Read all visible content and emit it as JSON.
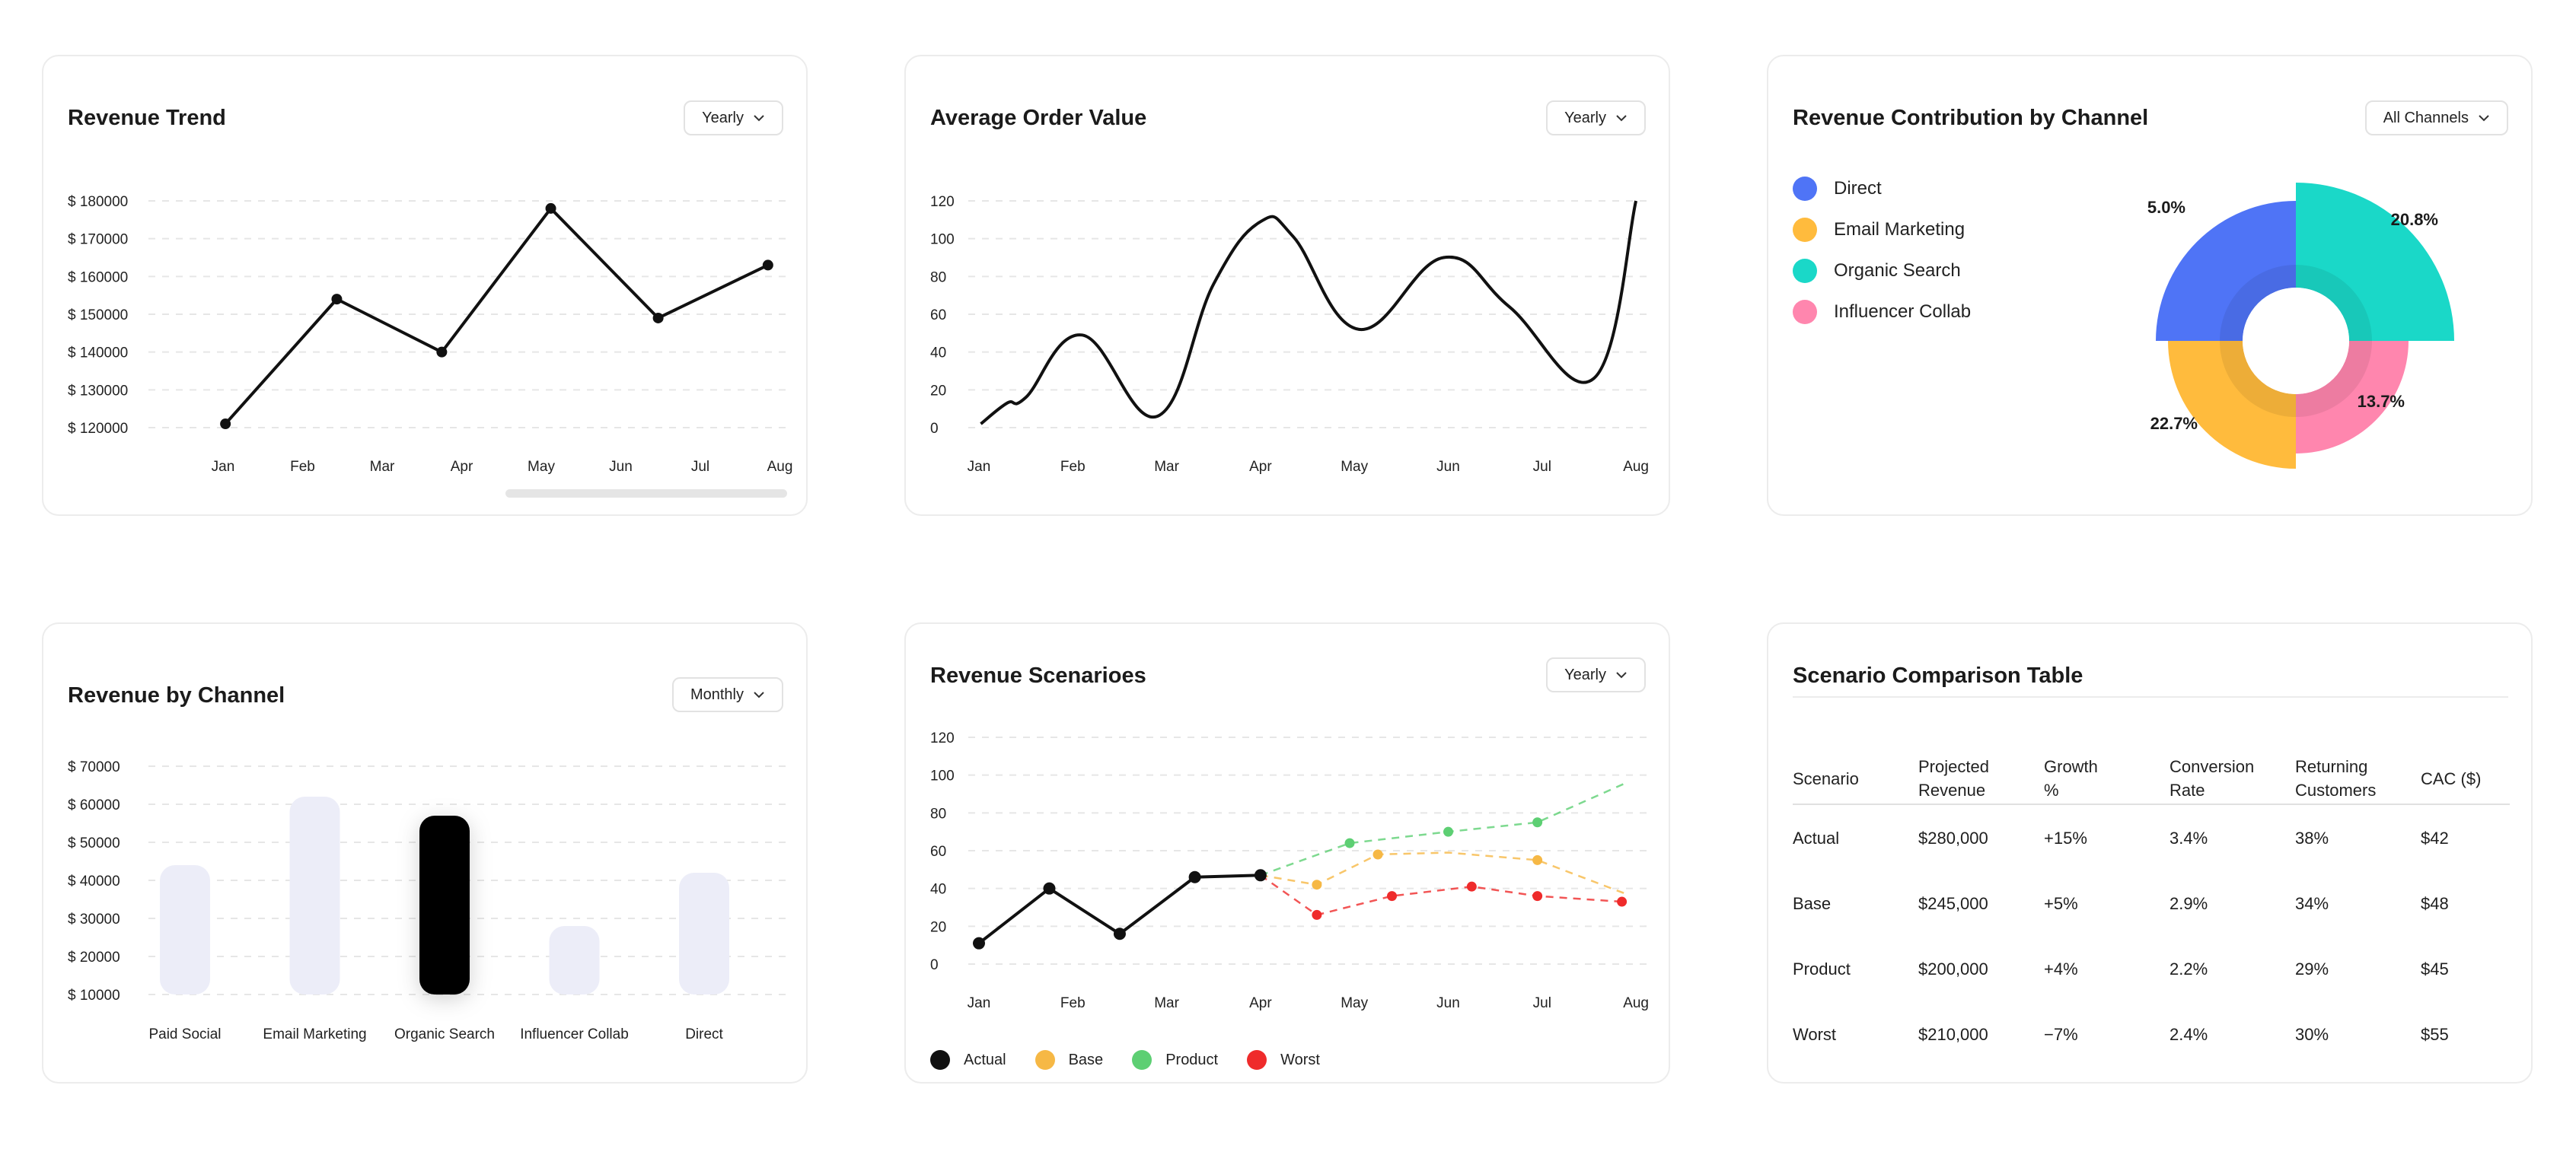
{
  "colors": {
    "direct": "#4f74f6",
    "email": "#ffbb3d",
    "organic": "#1ad8c8",
    "influencer": "#ff86ae",
    "actual": "#111111",
    "base": "#f6b845",
    "product": "#5dcf73",
    "worst": "#ef2b2b",
    "bar_light": "#ecedf8",
    "bar_active": "#000000"
  },
  "cards": {
    "revenue_trend": {
      "title": "Revenue Trend",
      "dropdown": "Yearly",
      "chart_data": {
        "type": "line",
        "title": "Revenue Trend",
        "categories": [
          "Jan",
          "Feb",
          "Mar",
          "Apr",
          "May",
          "Jun",
          "Jul",
          "Aug"
        ],
        "x": [
          "Jan",
          "Feb",
          "Apr",
          "May",
          "Jul",
          "Aug"
        ],
        "x_pos": [
          0.03,
          1.43,
          2.75,
          4.12,
          5.47,
          6.85
        ],
        "values": [
          121000,
          154000,
          140000,
          178000,
          149000,
          163000
        ],
        "ylim": [
          120000,
          180000
        ],
        "yticks": [
          180000,
          170000,
          160000,
          150000,
          140000,
          130000,
          120000
        ],
        "ytick_labels": [
          "$ 180000",
          "$ 170000",
          "$ 160000",
          "$ 150000",
          "$ 140000",
          "$ 130000",
          "$ 120000"
        ],
        "grid": true
      }
    },
    "avg_order_value": {
      "title": "Average Order Value",
      "dropdown": "Yearly",
      "chart_data": {
        "type": "line",
        "title": "Average Order Value",
        "categories": [
          "Jan",
          "Feb",
          "Mar",
          "Apr",
          "May",
          "Jun",
          "Jul",
          "Aug"
        ],
        "x": [
          0.02,
          0.3,
          0.5,
          1.1,
          1.9,
          2.5,
          3.0,
          3.35,
          4.05,
          4.95,
          5.65,
          6.55,
          7.0
        ],
        "values": [
          2,
          13,
          16,
          49,
          6,
          76,
          109,
          101,
          52,
          90,
          64,
          26,
          120
        ],
        "ylim": [
          0,
          120
        ],
        "yticks": [
          120,
          100,
          80,
          60,
          40,
          20,
          0
        ],
        "grid": true,
        "smooth": true
      }
    },
    "revenue_contribution": {
      "title": "Revenue Contribution by Channel",
      "dropdown": "All Channels",
      "legend": [
        "Direct",
        "Email Marketing",
        "Organic Search",
        "Influencer Collab"
      ],
      "chart_data": {
        "type": "pie",
        "title": "Revenue Contribution by Channel",
        "categories": [
          "Organic Search",
          "Influencer Collab",
          "Email Marketing",
          "Direct"
        ],
        "values": [
          20.8,
          13.7,
          22.7,
          5.0
        ],
        "labels": [
          "20.8%",
          "13.7%",
          "22.7%",
          "5.0%"
        ],
        "legend_position": "left"
      }
    },
    "revenue_by_channel": {
      "title": "Revenue by Channel",
      "dropdown": "Monthly",
      "chart_data": {
        "type": "bar",
        "title": "Revenue by Channel",
        "categories": [
          "Paid Social",
          "Email Marketing",
          "Organic Search",
          "Influencer Collab",
          "Direct"
        ],
        "values": [
          44000,
          62000,
          57000,
          28000,
          42000
        ],
        "highlight": "Organic Search",
        "ylim": [
          10000,
          70000
        ],
        "yticks": [
          70000,
          60000,
          50000,
          40000,
          30000,
          20000,
          10000
        ],
        "ytick_labels": [
          "$ 70000",
          "$ 60000",
          "$ 50000",
          "$ 40000",
          "$ 30000",
          "$ 20000",
          "$ 10000"
        ],
        "grid": true
      }
    },
    "revenue_scenarios": {
      "title": "Revenue Scenarioes",
      "dropdown": "Yearly",
      "legend": [
        "Actual",
        "Base",
        "Product",
        "Worst"
      ],
      "chart_data": {
        "type": "line",
        "title": "Revenue Scenarioes",
        "categories": [
          "Jan",
          "Feb",
          "Mar",
          "Apr",
          "May",
          "Jun",
          "Jul",
          "Aug"
        ],
        "ylim": [
          0,
          120
        ],
        "yticks": [
          120,
          100,
          80,
          60,
          40,
          20,
          0
        ],
        "grid": true,
        "series": [
          {
            "name": "Actual",
            "x": [
              0,
              0.75,
              1.5,
              2.3,
              3.0
            ],
            "values": [
              11,
              40,
              16,
              46,
              47
            ],
            "dashed": false
          },
          {
            "name": "Base",
            "x": [
              3.0,
              3.6,
              4.25,
              5.0,
              5.95,
              6.9
            ],
            "values": [
              47,
              42,
              58,
              59,
              55,
              37
            ],
            "markers": [
              false,
              true,
              true,
              false,
              true,
              false
            ],
            "dashed": true
          },
          {
            "name": "Product",
            "x": [
              3.0,
              3.95,
              5.0,
              5.95,
              6.9
            ],
            "values": [
              47,
              64,
              70,
              75,
              96
            ],
            "markers": [
              false,
              true,
              true,
              true,
              false
            ],
            "dashed": true
          },
          {
            "name": "Worst",
            "x": [
              3.0,
              3.6,
              4.4,
              5.25,
              5.95,
              6.85
            ],
            "values": [
              47,
              26,
              36,
              41,
              36,
              33
            ],
            "markers": [
              false,
              true,
              true,
              true,
              true,
              true
            ],
            "dashed": true
          }
        ]
      }
    },
    "scenario_table": {
      "title": "Scenario Comparison Table",
      "chart_data": {
        "type": "table",
        "columns": [
          [
            "Scenario"
          ],
          [
            "Projected",
            "Revenue"
          ],
          [
            "Growth",
            "%"
          ],
          [
            "Conversion",
            "Rate"
          ],
          [
            "Returning",
            "Customers"
          ],
          [
            "CAC ($)"
          ]
        ],
        "rows": [
          [
            "Actual",
            "$280,000",
            "+15%",
            "3.4%",
            "38%",
            "$42"
          ],
          [
            "Base",
            "$245,000",
            "+5%",
            "2.9%",
            "34%",
            "$48"
          ],
          [
            "Product",
            "$200,000",
            "+4%",
            "2.2%",
            "29%",
            "$45"
          ],
          [
            "Worst",
            "$210,000",
            "−7%",
            "2.4%",
            "30%",
            "$55"
          ]
        ]
      }
    }
  }
}
